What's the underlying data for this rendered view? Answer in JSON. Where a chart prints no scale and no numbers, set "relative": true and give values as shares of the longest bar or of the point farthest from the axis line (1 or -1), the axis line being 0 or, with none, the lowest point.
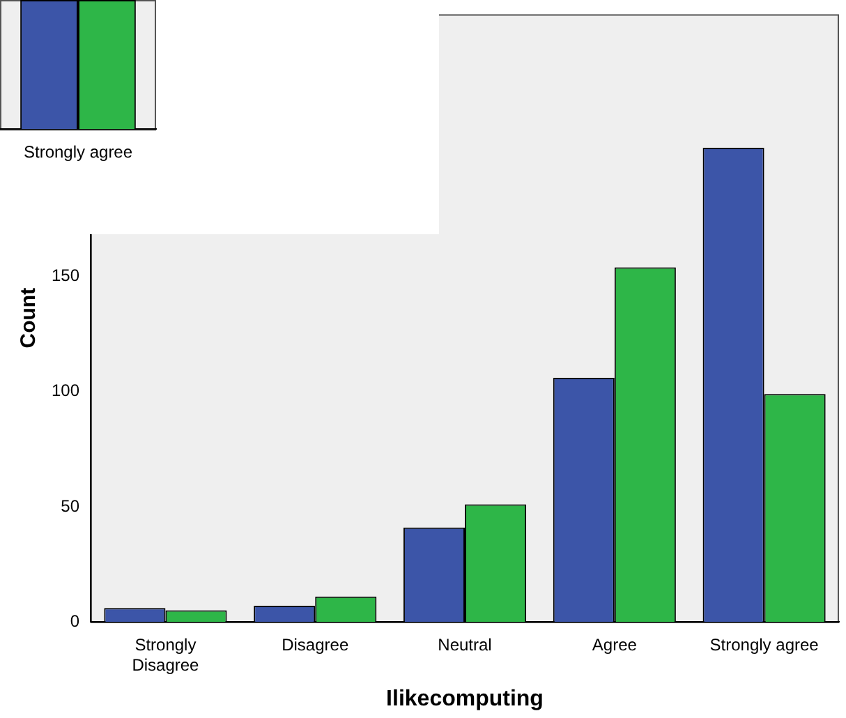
{
  "chart_data": [
    {
      "type": "bar",
      "categories": [
        "Strongly agree"
      ],
      "relative": true,
      "tick_labels": "x",
      "series": [
        {
          "color": "#3c55a8",
          "values": [
            1
          ]
        },
        {
          "color": "#2eb648",
          "values": [
            1
          ]
        }
      ]
    },
    {
      "type": "bar",
      "xlabel": "Ilikecomputing",
      "ylabel": "Count",
      "categories": [
        "Strongly\nDisagree",
        "Disagree",
        "Neutral",
        "Agree",
        "Strongly agree"
      ],
      "ylim": [
        0,
        264
      ],
      "yticks": [
        0,
        50,
        100,
        150
      ],
      "series": [
        {
          "color": "#3c55a8",
          "values": [
            6,
            7,
            41,
            106,
            206
          ]
        },
        {
          "color": "#2eb648",
          "values": [
            5,
            11,
            51,
            154,
            99
          ]
        }
      ]
    }
  ]
}
